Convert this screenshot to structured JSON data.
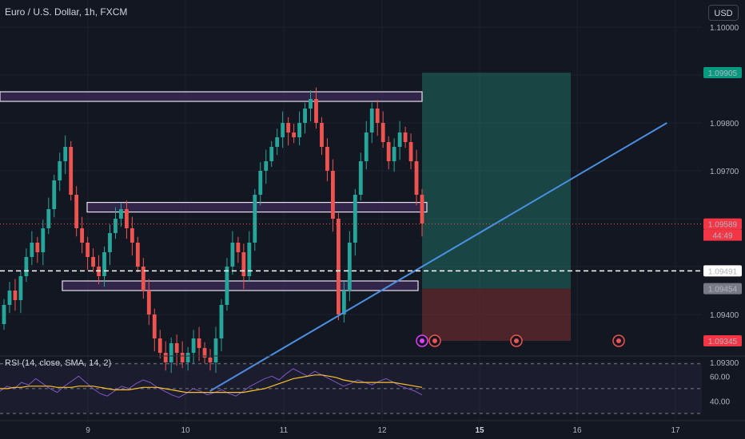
{
  "header": {
    "title": "Euro / U.S. Dollar, 1h, FXCM",
    "currency_button": "USD"
  },
  "rsi": {
    "label": "RSI (14, close, SMA, 14, 2)",
    "ticks": [
      "60.00",
      "40.00"
    ]
  },
  "colors": {
    "background": "#131722",
    "up": "#26a69a",
    "down": "#ef5350",
    "zone_fill": "#3a2a55",
    "zone_border": "#e8e0f0",
    "trendline": "#4a90e2",
    "target": "#1f6b63",
    "stop": "#6b2b30",
    "rsi_line": "#7e57c2",
    "rsi_ma": "#fbc02d"
  },
  "chart_data": {
    "type": "candlestick",
    "symbol": "Euro / U.S. Dollar",
    "interval": "1h",
    "source": "FXCM",
    "y_ticks": [
      "1.10000",
      "1.09800",
      "1.09700",
      "1.09400",
      "1.09300"
    ],
    "ylim": [
      1.0923,
      1.1004
    ],
    "x_ticks": [
      {
        "label": "9",
        "bold": false
      },
      {
        "label": "10",
        "bold": false
      },
      {
        "label": "11",
        "bold": false
      },
      {
        "label": "12",
        "bold": false
      },
      {
        "label": "15",
        "bold": true
      },
      {
        "label": "16",
        "bold": false
      },
      {
        "label": "17",
        "bold": false
      }
    ],
    "price_labels": {
      "target": "1.09905",
      "current": "1.09589",
      "countdown": "44:49",
      "entry": "1.09491",
      "stop_line": "1.09454",
      "stop": "1.09345"
    },
    "zones": [
      {
        "top": 1.09865,
        "bottom": 1.09845
      },
      {
        "top": 1.09634,
        "bottom": 1.09614
      },
      {
        "top": 1.0947,
        "bottom": 1.09452
      }
    ],
    "trendline": [
      {
        "t": "10 06:00",
        "price": 1.0924
      },
      {
        "t": "16 22:00",
        "price": 1.098
      }
    ],
    "closes": [
      1.0942,
      1.0945,
      1.0943,
      1.0948,
      1.0952,
      1.0955,
      1.0953,
      1.0958,
      1.0962,
      1.0968,
      1.0972,
      1.0975,
      1.0965,
      1.0958,
      1.0955,
      1.0952,
      1.095,
      1.0948,
      1.0953,
      1.0957,
      1.096,
      1.0962,
      1.0958,
      1.0955,
      1.095,
      1.0945,
      1.094,
      1.0935,
      1.0932,
      1.093,
      1.0934,
      1.0932,
      1.093,
      1.0932,
      1.0935,
      1.0933,
      1.0931,
      1.093,
      1.0935,
      1.0942,
      1.095,
      1.0955,
      1.0953,
      1.0948,
      1.0955,
      1.0965,
      1.097,
      1.0972,
      1.0975,
      1.0977,
      1.098,
      1.0978,
      1.0977,
      1.098,
      1.0983,
      1.0985,
      1.098,
      1.0975,
      1.097,
      1.096,
      1.094,
      1.0945,
      1.0955,
      1.0965,
      1.0972,
      1.0978,
      1.0983,
      1.098,
      1.0976,
      1.0972,
      1.0975,
      1.0978,
      1.0976,
      1.0972,
      1.0965,
      1.0959
    ],
    "rsi_values": [
      48,
      52,
      50,
      55,
      53,
      58,
      54,
      50,
      47,
      52,
      56,
      60,
      55,
      50,
      46,
      44,
      48,
      52,
      50,
      54,
      57,
      55,
      51,
      48,
      45,
      43,
      46,
      50,
      48,
      45,
      47,
      49,
      46,
      44,
      48,
      52,
      55,
      58,
      60,
      57,
      62,
      66,
      63,
      60,
      64,
      61,
      58,
      55,
      52,
      54,
      57,
      55,
      53,
      56,
      58,
      55,
      52,
      50,
      48,
      45
    ],
    "rsi_ma_values": [
      50,
      50,
      51,
      51,
      52,
      52,
      52,
      52,
      51,
      51,
      51,
      52,
      52,
      52,
      51,
      50,
      49,
      49,
      49,
      50,
      51,
      51,
      51,
      50,
      49,
      48,
      47,
      47,
      47,
      47,
      47,
      47,
      47,
      47,
      47,
      48,
      49,
      50,
      52,
      54,
      56,
      58,
      59,
      60,
      61,
      61,
      60,
      59,
      57,
      56,
      55,
      55,
      55,
      55,
      55,
      55,
      54,
      53,
      52,
      51
    ],
    "rsi_ylim": [
      30,
      75
    ]
  }
}
